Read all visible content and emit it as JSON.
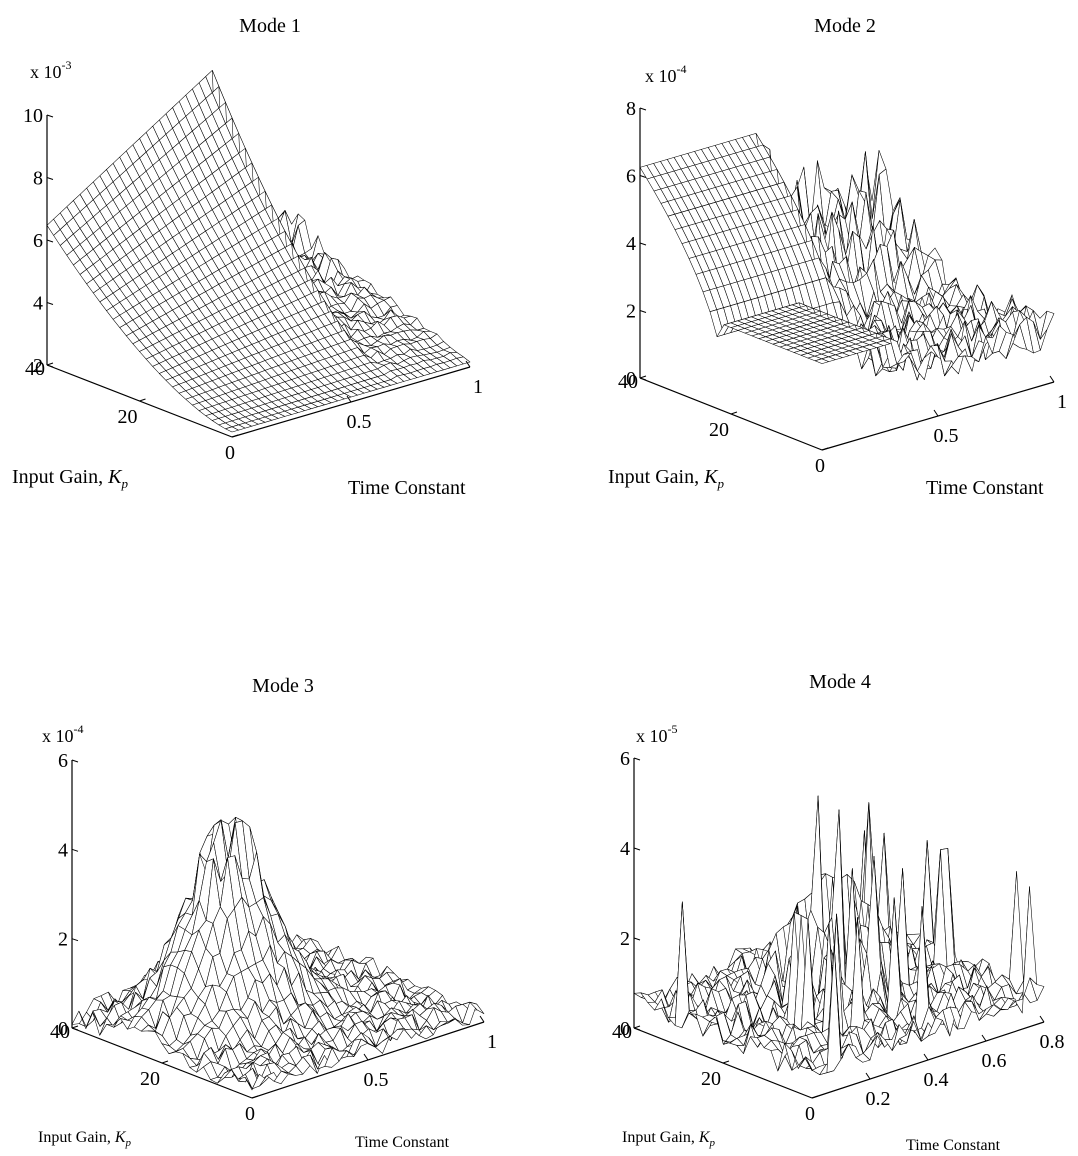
{
  "chart_data": [
    {
      "type": "surface",
      "title": "Mode 1",
      "multiplier": "x 10",
      "multiplier_exp": "-3",
      "xlabel": "Time Constant",
      "ylabel": "Input Gain, ",
      "ylabel_sym": "K",
      "ylabel_sub": "p",
      "xlim": [
        0,
        1
      ],
      "ylim": [
        0,
        40
      ],
      "zlim": [
        2,
        10
      ],
      "xticks": [
        "0.5",
        "1"
      ],
      "yticks": [
        "0",
        "20",
        "40"
      ],
      "zticks": [
        "2",
        "4",
        "6",
        "8",
        "10"
      ],
      "zticks_values": [
        2,
        4,
        6,
        8,
        10
      ],
      "shape": "ramp",
      "grid": [
        36,
        28
      ]
    },
    {
      "type": "surface",
      "title": "Mode 2",
      "multiplier": "x 10",
      "multiplier_exp": "-4",
      "xlabel": "Time Constant",
      "ylabel": "Input Gain, ",
      "ylabel_sym": "K",
      "ylabel_sub": "p",
      "xlim": [
        0,
        1
      ],
      "ylim": [
        0,
        40
      ],
      "zlim": [
        0,
        8
      ],
      "xticks": [
        "0.5",
        "1"
      ],
      "yticks": [
        "0",
        "20",
        "40"
      ],
      "zticks": [
        "0",
        "2",
        "4",
        "6",
        "8"
      ],
      "zticks_values": [
        0,
        2,
        4,
        6,
        8
      ],
      "shape": "ridges",
      "grid": [
        34,
        26
      ]
    },
    {
      "type": "surface",
      "title": "Mode 3",
      "multiplier": "x 10",
      "multiplier_exp": "-4",
      "xlabel": "Time Constant",
      "ylabel": "Input Gain, ",
      "ylabel_sym": "K",
      "ylabel_sub": "p",
      "xlim": [
        0,
        1
      ],
      "ylim": [
        0,
        40
      ],
      "zlim": [
        0,
        6
      ],
      "xticks": [
        "0.5",
        "1"
      ],
      "yticks": [
        "0",
        "20",
        "40"
      ],
      "zticks": [
        "0",
        "2",
        "4",
        "6"
      ],
      "zticks_values": [
        0,
        2,
        4,
        6
      ],
      "shape": "peak",
      "grid": [
        32,
        26
      ]
    },
    {
      "type": "surface",
      "title": "Mode 4",
      "multiplier": "x 10",
      "multiplier_exp": "-5",
      "xlabel": "Time Constant",
      "ylabel": "Input Gain, ",
      "ylabel_sym": "K",
      "ylabel_sub": "p",
      "xlim": [
        0,
        0.8
      ],
      "ylim": [
        0,
        40
      ],
      "zlim": [
        0,
        6
      ],
      "xticks": [
        "0.2",
        "0.4",
        "0.6",
        "0.8"
      ],
      "yticks": [
        "0",
        "20",
        "40"
      ],
      "zticks": [
        "0",
        "2",
        "4",
        "6"
      ],
      "zticks_values": [
        0,
        2,
        4,
        6
      ],
      "shape": "spikes",
      "grid": [
        32,
        26
      ]
    }
  ]
}
